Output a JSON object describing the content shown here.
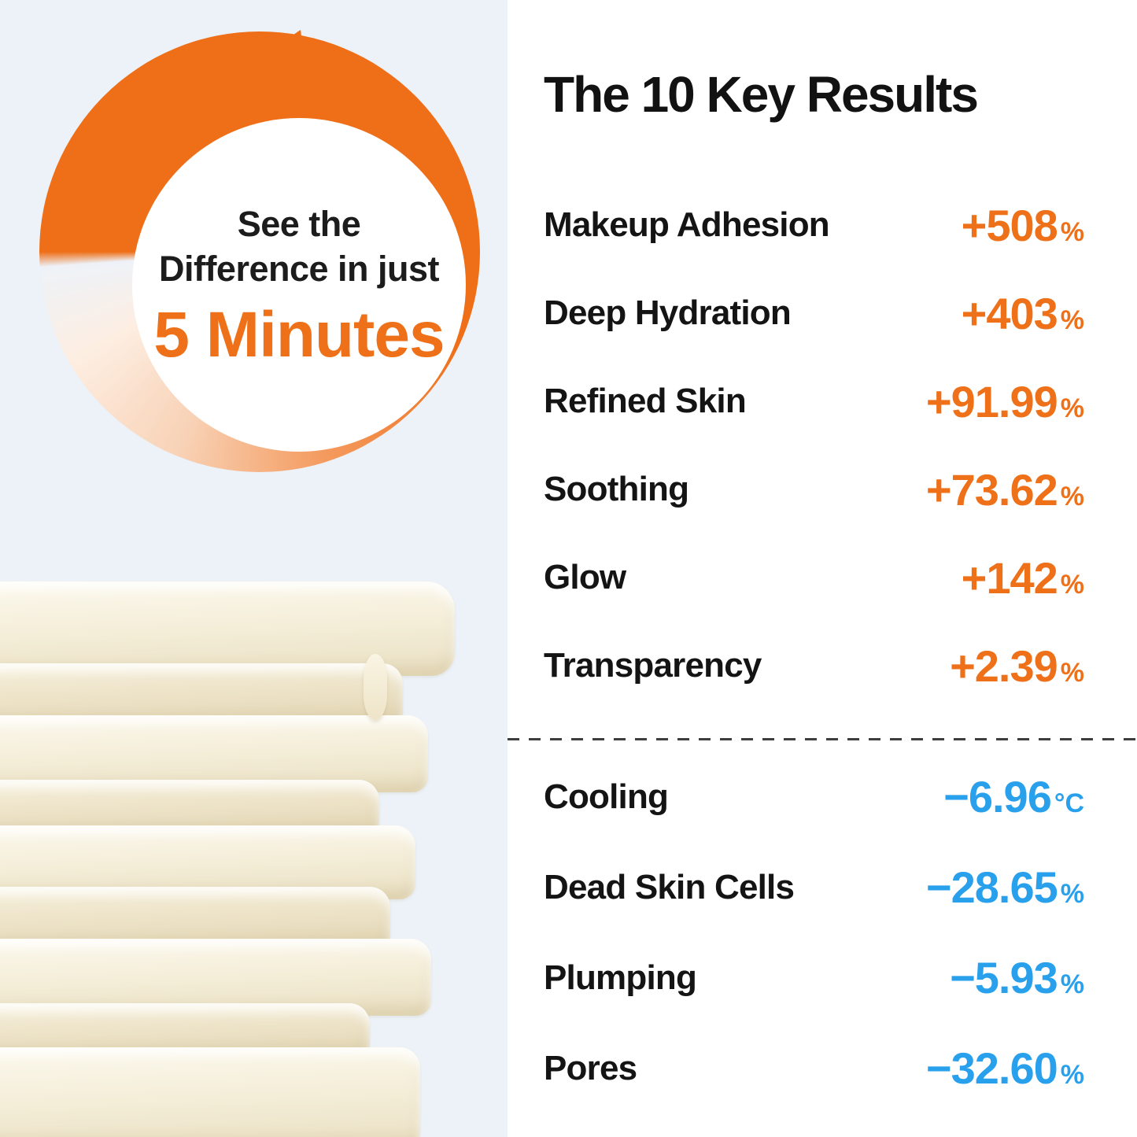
{
  "colors": {
    "accent_orange": "#ee7018",
    "accent_blue": "#29a0ec",
    "left_background": "#edf2f8",
    "divider": "#3e3e3e"
  },
  "badge": {
    "icon": "circular-arrow",
    "line1": "See the",
    "line2": "Difference in just",
    "highlight": "5 Minutes"
  },
  "results": {
    "title": "The 10 Key Results",
    "positive": [
      {
        "label": "Makeup Adhesion",
        "value": "+508",
        "unit": "%"
      },
      {
        "label": "Deep Hydration",
        "value": "+403",
        "unit": "%"
      },
      {
        "label": "Refined Skin",
        "value": "+91.99",
        "unit": "%"
      },
      {
        "label": "Soothing",
        "value": "+73.62",
        "unit": "%"
      },
      {
        "label": "Glow",
        "value": "+142",
        "unit": "%"
      },
      {
        "label": "Transparency",
        "value": "+2.39",
        "unit": "%"
      }
    ],
    "negative": [
      {
        "label": "Cooling",
        "value": "−6.96",
        "unit": "°C"
      },
      {
        "label": "Dead Skin Cells",
        "value": "−28.65",
        "unit": "%"
      },
      {
        "label": "Plumping",
        "value": "−5.93",
        "unit": "%"
      },
      {
        "label": "Pores",
        "value": "−32.60",
        "unit": "%"
      }
    ]
  },
  "chart_data": {
    "type": "table",
    "title": "The 10 Key Results",
    "categories": [
      "Makeup Adhesion",
      "Deep Hydration",
      "Refined Skin",
      "Soothing",
      "Glow",
      "Transparency",
      "Cooling",
      "Dead Skin Cells",
      "Plumping",
      "Pores"
    ],
    "values": [
      508,
      403,
      91.99,
      73.62,
      142,
      2.39,
      -6.96,
      -28.65,
      -5.93,
      -32.6
    ],
    "units": [
      "%",
      "%",
      "%",
      "%",
      "%",
      "%",
      "°C",
      "%",
      "%",
      "%"
    ],
    "annotations": [
      "See the Difference in just 5 Minutes"
    ],
    "legend_position": "none",
    "grid": false
  }
}
